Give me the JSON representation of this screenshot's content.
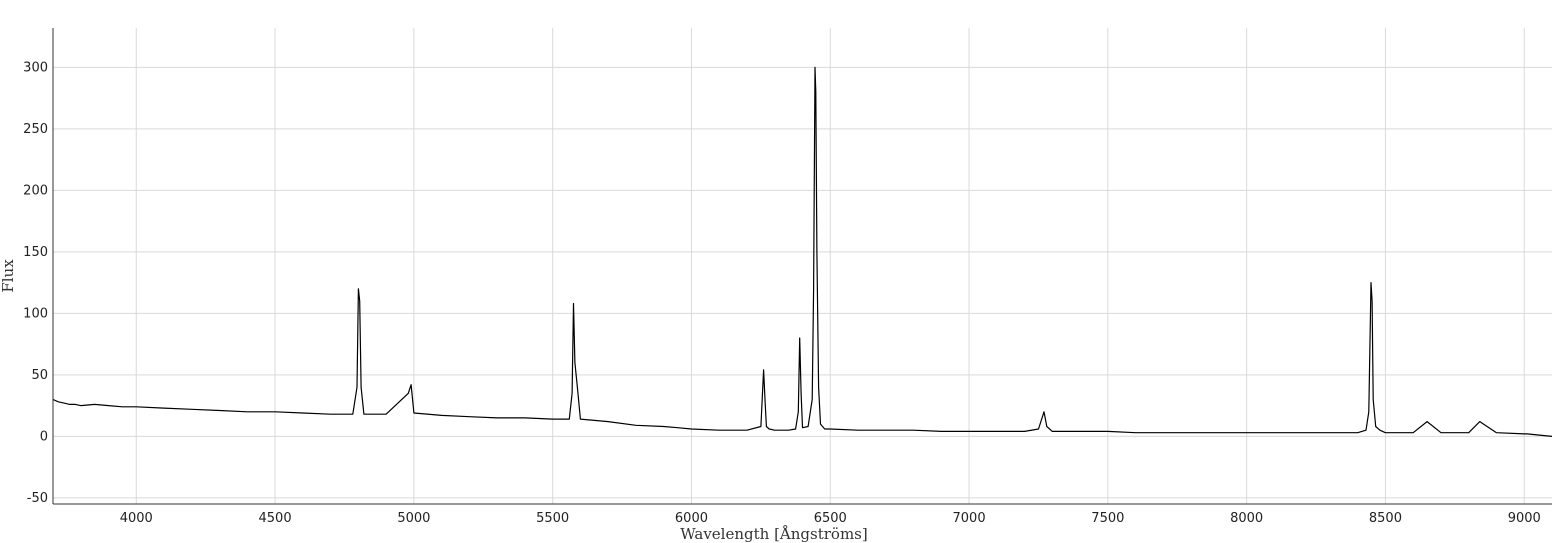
{
  "chart_data": {
    "type": "line",
    "title": "",
    "xlabel": "Wavelength [Ångströms]",
    "ylabel": "Flux",
    "xlim": [
      3700,
      9100
    ],
    "ylim": [
      -55,
      332
    ],
    "xticks": [
      4000,
      4500,
      5000,
      5500,
      6000,
      6500,
      7000,
      7500,
      8000,
      8500,
      9000
    ],
    "yticks": [
      -50,
      0,
      50,
      100,
      150,
      200,
      250,
      300
    ],
    "grid": true,
    "legend": "none",
    "colors": {
      "line": "#000000",
      "grid": "#d9d9d9",
      "axis": "#333333"
    },
    "series": [
      {
        "x": [
          3700,
          3720,
          3740,
          3760,
          3780,
          3800,
          3850,
          3900,
          3950,
          4000,
          4100,
          4200,
          4300,
          4400,
          4500,
          4600,
          4700,
          4780,
          4795,
          4800,
          4805,
          4810,
          4820,
          4900,
          4980,
          4990,
          5000,
          5100,
          5200,
          5300,
          5400,
          5500,
          5560,
          5570,
          5575,
          5580,
          5590,
          5600,
          5700,
          5800,
          5900,
          5950,
          6000,
          6100,
          6200,
          6250,
          6260,
          6265,
          6270,
          6280,
          6300,
          6350,
          6375,
          6385,
          6390,
          6395,
          6400,
          6420,
          6435,
          6440,
          6445,
          6448,
          6452,
          6458,
          6465,
          6480,
          6500,
          6600,
          6700,
          6800,
          6900,
          7000,
          7100,
          7200,
          7250,
          7270,
          7280,
          7300,
          7400,
          7500,
          7600,
          7700,
          7800,
          7900,
          8000,
          8100,
          8200,
          8300,
          8400,
          8430,
          8440,
          8448,
          8452,
          8456,
          8465,
          8480,
          8500,
          8600,
          8650,
          8700,
          8800,
          8840,
          8900,
          9000,
          9010,
          9100
        ],
        "y": [
          30,
          28,
          27,
          26,
          26,
          25,
          26,
          25,
          24,
          24,
          23,
          22,
          21,
          20,
          20,
          19,
          18,
          18,
          40,
          120,
          110,
          40,
          18,
          18,
          35,
          42,
          19,
          17,
          16,
          15,
          15,
          14,
          14,
          35,
          108,
          60,
          38,
          14,
          12,
          9,
          8,
          7,
          6,
          5,
          5,
          8,
          54,
          30,
          8,
          6,
          5,
          5,
          6,
          20,
          80,
          35,
          7,
          8,
          30,
          120,
          300,
          280,
          150,
          40,
          10,
          6,
          6,
          5,
          5,
          5,
          4,
          4,
          4,
          4,
          6,
          20,
          8,
          4,
          4,
          4,
          3,
          3,
          3,
          3,
          3,
          3,
          3,
          3,
          3,
          5,
          20,
          125,
          110,
          30,
          8,
          5,
          3,
          3,
          12,
          3,
          3,
          12,
          3,
          2,
          2,
          0
        ]
      }
    ]
  }
}
